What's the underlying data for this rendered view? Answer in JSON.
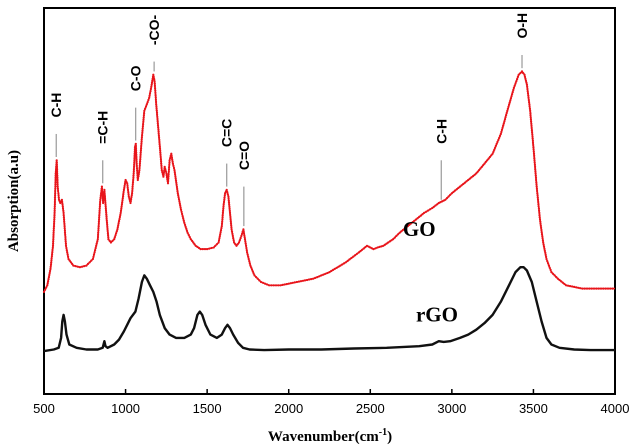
{
  "chart_data": {
    "type": "line",
    "title": "",
    "xlabel": "Wavenumber(cm",
    "xlabel_sup": "-1",
    "xlabel_close": ")",
    "ylabel": "Absorption(a.u)",
    "xlim": [
      500,
      4000
    ],
    "ylim": [
      0,
      100
    ],
    "x_ticks": [
      "500",
      "1000",
      "1500",
      "2000",
      "2500",
      "3000",
      "3500",
      "4000"
    ],
    "grid": false,
    "series": [
      {
        "name": "GO",
        "color": "#e8151b",
        "marker": "dot",
        "points": [
          [
            500,
            28
          ],
          [
            520,
            30
          ],
          [
            540,
            35
          ],
          [
            555,
            42
          ],
          [
            565,
            52
          ],
          [
            572,
            64
          ],
          [
            578,
            68
          ],
          [
            584,
            60
          ],
          [
            592,
            56
          ],
          [
            600,
            55
          ],
          [
            610,
            56
          ],
          [
            620,
            52
          ],
          [
            635,
            42
          ],
          [
            650,
            38
          ],
          [
            680,
            36
          ],
          [
            720,
            35.5
          ],
          [
            760,
            36
          ],
          [
            800,
            38
          ],
          [
            830,
            44
          ],
          [
            845,
            56
          ],
          [
            855,
            60
          ],
          [
            862,
            55
          ],
          [
            870,
            59
          ],
          [
            878,
            54
          ],
          [
            886,
            49
          ],
          [
            895,
            44
          ],
          [
            910,
            43
          ],
          [
            930,
            44
          ],
          [
            950,
            47
          ],
          [
            970,
            52
          ],
          [
            990,
            59
          ],
          [
            1000,
            62
          ],
          [
            1010,
            61
          ],
          [
            1020,
            57
          ],
          [
            1030,
            55
          ],
          [
            1040,
            58
          ],
          [
            1050,
            64
          ],
          [
            1058,
            72
          ],
          [
            1063,
            73
          ],
          [
            1068,
            67
          ],
          [
            1075,
            62
          ],
          [
            1085,
            65
          ],
          [
            1100,
            75
          ],
          [
            1115,
            83
          ],
          [
            1130,
            85
          ],
          [
            1145,
            87
          ],
          [
            1160,
            91
          ],
          [
            1170,
            94
          ],
          [
            1178,
            92
          ],
          [
            1188,
            85
          ],
          [
            1200,
            78
          ],
          [
            1212,
            71
          ],
          [
            1222,
            65
          ],
          [
            1232,
            63
          ],
          [
            1240,
            66
          ],
          [
            1250,
            64
          ],
          [
            1260,
            61
          ],
          [
            1270,
            68
          ],
          [
            1280,
            70
          ],
          [
            1290,
            67
          ],
          [
            1300,
            65
          ],
          [
            1320,
            58
          ],
          [
            1340,
            53
          ],
          [
            1360,
            49
          ],
          [
            1380,
            46
          ],
          [
            1400,
            44
          ],
          [
            1430,
            42
          ],
          [
            1460,
            41
          ],
          [
            1500,
            41
          ],
          [
            1540,
            41.5
          ],
          [
            1570,
            43
          ],
          [
            1590,
            48
          ],
          [
            1600,
            54
          ],
          [
            1610,
            58
          ],
          [
            1620,
            59
          ],
          [
            1630,
            57
          ],
          [
            1640,
            52
          ],
          [
            1650,
            47
          ],
          [
            1665,
            43
          ],
          [
            1680,
            42
          ],
          [
            1695,
            43
          ],
          [
            1710,
            45
          ],
          [
            1722,
            47
          ],
          [
            1732,
            44
          ],
          [
            1745,
            40
          ],
          [
            1765,
            36
          ],
          [
            1790,
            33
          ],
          [
            1830,
            31
          ],
          [
            1880,
            30
          ],
          [
            1950,
            30
          ],
          [
            2050,
            31
          ],
          [
            2150,
            32
          ],
          [
            2250,
            34
          ],
          [
            2350,
            37
          ],
          [
            2430,
            40
          ],
          [
            2480,
            42
          ],
          [
            2500,
            41.5
          ],
          [
            2520,
            41
          ],
          [
            2545,
            41.5
          ],
          [
            2580,
            42
          ],
          [
            2610,
            43
          ],
          [
            2640,
            44
          ],
          [
            2680,
            46
          ],
          [
            2730,
            48
          ],
          [
            2780,
            50
          ],
          [
            2830,
            52
          ],
          [
            2880,
            53.5
          ],
          [
            2920,
            55
          ],
          [
            2940,
            55.5
          ],
          [
            2960,
            56
          ],
          [
            3000,
            58
          ],
          [
            3050,
            60
          ],
          [
            3100,
            62
          ],
          [
            3150,
            64
          ],
          [
            3200,
            67
          ],
          [
            3250,
            70
          ],
          [
            3300,
            76
          ],
          [
            3340,
            83
          ],
          [
            3380,
            90
          ],
          [
            3410,
            94
          ],
          [
            3430,
            95
          ],
          [
            3445,
            94
          ],
          [
            3460,
            91
          ],
          [
            3480,
            83
          ],
          [
            3500,
            72
          ],
          [
            3520,
            60
          ],
          [
            3540,
            50
          ],
          [
            3560,
            43
          ],
          [
            3580,
            38
          ],
          [
            3610,
            34
          ],
          [
            3650,
            32
          ],
          [
            3700,
            30
          ],
          [
            3800,
            29
          ],
          [
            3900,
            29
          ],
          [
            4000,
            29
          ]
        ]
      },
      {
        "name": "rGO",
        "color": "#111111",
        "marker": "none",
        "points": [
          [
            500,
            10
          ],
          [
            560,
            10.5
          ],
          [
            590,
            11
          ],
          [
            605,
            14
          ],
          [
            612,
            19
          ],
          [
            620,
            21
          ],
          [
            628,
            19
          ],
          [
            638,
            15
          ],
          [
            655,
            12
          ],
          [
            700,
            11
          ],
          [
            760,
            10.5
          ],
          [
            830,
            10.5
          ],
          [
            860,
            11
          ],
          [
            870,
            13
          ],
          [
            877,
            11.5
          ],
          [
            890,
            11
          ],
          [
            930,
            12
          ],
          [
            960,
            13.5
          ],
          [
            990,
            16
          ],
          [
            1010,
            18
          ],
          [
            1030,
            20
          ],
          [
            1060,
            22
          ],
          [
            1080,
            26
          ],
          [
            1100,
            31
          ],
          [
            1115,
            33
          ],
          [
            1130,
            32
          ],
          [
            1150,
            30
          ],
          [
            1170,
            28
          ],
          [
            1190,
            25
          ],
          [
            1210,
            21
          ],
          [
            1240,
            17
          ],
          [
            1270,
            15
          ],
          [
            1310,
            14
          ],
          [
            1360,
            14
          ],
          [
            1400,
            15
          ],
          [
            1420,
            17
          ],
          [
            1440,
            21
          ],
          [
            1455,
            22
          ],
          [
            1470,
            21
          ],
          [
            1490,
            18
          ],
          [
            1520,
            15
          ],
          [
            1560,
            14
          ],
          [
            1590,
            15
          ],
          [
            1610,
            17
          ],
          [
            1625,
            18
          ],
          [
            1640,
            17
          ],
          [
            1660,
            15
          ],
          [
            1690,
            12.5
          ],
          [
            1720,
            11
          ],
          [
            1760,
            10.5
          ],
          [
            1850,
            10.3
          ],
          [
            2000,
            10.5
          ],
          [
            2200,
            10.5
          ],
          [
            2400,
            10.8
          ],
          [
            2600,
            11
          ],
          [
            2800,
            11.5
          ],
          [
            2880,
            12
          ],
          [
            2920,
            13
          ],
          [
            2950,
            12.8
          ],
          [
            2990,
            13
          ],
          [
            3050,
            14
          ],
          [
            3100,
            15
          ],
          [
            3150,
            16.5
          ],
          [
            3200,
            18.5
          ],
          [
            3250,
            21
          ],
          [
            3300,
            25
          ],
          [
            3350,
            30
          ],
          [
            3390,
            34
          ],
          [
            3420,
            35.5
          ],
          [
            3440,
            35.5
          ],
          [
            3460,
            34.5
          ],
          [
            3490,
            31
          ],
          [
            3520,
            25
          ],
          [
            3550,
            19
          ],
          [
            3580,
            14
          ],
          [
            3610,
            12
          ],
          [
            3660,
            11
          ],
          [
            3750,
            10.5
          ],
          [
            3850,
            10.3
          ],
          [
            4000,
            10.3
          ]
        ]
      }
    ],
    "series_labels": [
      {
        "text": "GO",
        "x": 2700,
        "y": 45
      },
      {
        "text": "rGO",
        "x": 2780,
        "y": 19
      }
    ],
    "annotations": [
      {
        "label": "C-H",
        "x": 575,
        "y_line_top": 76,
        "y_line_bottom": 69,
        "y_text": 81
      },
      {
        "label": "=C-H",
        "x": 860,
        "y_line_top": 68,
        "y_line_bottom": 61,
        "y_text": 73
      },
      {
        "label": "C-O",
        "x": 1062,
        "y_line_top": 84,
        "y_line_bottom": 74,
        "y_text": 89
      },
      {
        "label": "-CO-",
        "x": 1175,
        "y_line_top": 98,
        "y_line_bottom": 95,
        "y_text": 103
      },
      {
        "label": "C=C",
        "x": 1620,
        "y_line_top": 67,
        "y_line_bottom": 60,
        "y_text": 72
      },
      {
        "label": "C=O",
        "x": 1725,
        "y_line_top": 60,
        "y_line_bottom": 48,
        "y_text": 65
      },
      {
        "label": "C-H",
        "x": 2935,
        "y_line_top": 68,
        "y_line_bottom": 56,
        "y_text": 73
      },
      {
        "label": "O-H",
        "x": 3430,
        "y_line_top": 100,
        "y_line_bottom": 96,
        "y_text": 105
      }
    ]
  }
}
